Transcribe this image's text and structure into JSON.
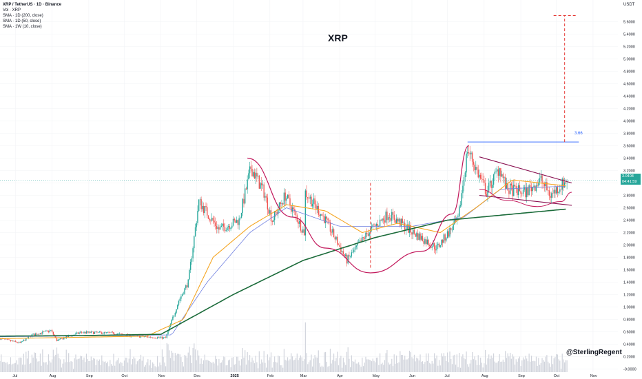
{
  "legend": {
    "symbol": "XRP / TetherUS · 1D · Binance",
    "vol": "Vol · XRP",
    "sma1": "SMA · 1D (200, close)",
    "sma2": "SMA · 1D (50, close)",
    "sma3": "SMA · 1W (10, close)"
  },
  "title": "XRP",
  "currency": "USDT",
  "watermark": "@SterlingRegent",
  "price_tag": {
    "price": "3.0408",
    "countdown": "04:41:59",
    "color": "#26a69a"
  },
  "target_label": "3.66",
  "colors": {
    "up": "#26a69a",
    "down": "#ef5350",
    "sma200": "#1b6b3a",
    "sma50": "#f5a623",
    "sma1w": "#6e7fe0",
    "annotation": "#c2185b",
    "dashed": "#e53935",
    "target_line": "#2962ff",
    "volume": "#d1d4dc"
  },
  "chart_data": {
    "type": "candlestick",
    "ylim": [
      -0.05,
      5.95
    ],
    "y_ticks": [
      "5.6000",
      "5.4000",
      "5.2000",
      "5.0000",
      "4.8000",
      "4.6000",
      "4.4000",
      "4.2000",
      "4.0000",
      "3.8000",
      "3.6000",
      "3.4000",
      "3.2000",
      "3.0000",
      "2.8000",
      "2.6000",
      "2.4000",
      "2.2000",
      "2.0000",
      "1.8000",
      "1.6000",
      "1.4000",
      "1.2000",
      "1.0000",
      "0.8000",
      "0.6000",
      "0.4000",
      "0.2000",
      "-0.0000"
    ],
    "x_ticks": [
      "Jul",
      "Aug",
      "Sep",
      "Oct",
      "Nov",
      "Dec",
      "2025",
      "Feb",
      "Mar",
      "Apr",
      "May",
      "Jun",
      "Jul",
      "Aug",
      "Sep",
      "Oct",
      "Nov"
    ],
    "x_range": [
      "2024-06-18",
      "2025-11-22"
    ],
    "current_price": 3.0408,
    "price_anchors": [
      [
        "2024-06-18",
        0.49
      ],
      [
        "2024-07-05",
        0.42
      ],
      [
        "2024-07-15",
        0.55
      ],
      [
        "2024-07-31",
        0.62
      ],
      [
        "2024-08-05",
        0.46
      ],
      [
        "2024-08-25",
        0.59
      ],
      [
        "2024-09-20",
        0.58
      ],
      [
        "2024-10-10",
        0.53
      ],
      [
        "2024-11-05",
        0.5
      ],
      [
        "2024-11-16",
        1.1
      ],
      [
        "2024-11-24",
        1.4
      ],
      [
        "2024-12-03",
        2.7
      ],
      [
        "2024-12-20",
        2.25
      ],
      [
        "2025-01-06",
        2.4
      ],
      [
        "2025-01-16",
        3.25
      ],
      [
        "2025-01-27",
        2.85
      ],
      [
        "2025-02-03",
        2.4
      ],
      [
        "2025-02-14",
        2.8
      ],
      [
        "2025-03-02",
        2.2
      ],
      [
        "2025-03-03",
        2.85
      ],
      [
        "2025-03-20",
        2.4
      ],
      [
        "2025-04-07",
        1.75
      ],
      [
        "2025-04-25",
        2.2
      ],
      [
        "2025-05-12",
        2.5
      ],
      [
        "2025-06-02",
        2.2
      ],
      [
        "2025-06-22",
        1.95
      ],
      [
        "2025-07-10",
        2.4
      ],
      [
        "2025-07-18",
        3.55
      ],
      [
        "2025-07-28",
        3.1
      ],
      [
        "2025-08-03",
        2.85
      ],
      [
        "2025-08-14",
        3.25
      ],
      [
        "2025-08-20",
        2.9
      ],
      [
        "2025-09-05",
        2.85
      ],
      [
        "2025-09-18",
        3.05
      ],
      [
        "2025-09-26",
        2.8
      ],
      [
        "2025-10-06",
        2.98
      ],
      [
        "2025-10-10",
        3.04
      ]
    ],
    "sma_200": [
      [
        "2024-06-18",
        0.53
      ],
      [
        "2024-09-01",
        0.54
      ],
      [
        "2024-11-01",
        0.56
      ],
      [
        "2025-01-01",
        1.2
      ],
      [
        "2025-03-01",
        1.75
      ],
      [
        "2025-05-01",
        2.12
      ],
      [
        "2025-07-01",
        2.4
      ],
      [
        "2025-08-15",
        2.48
      ],
      [
        "2025-10-10",
        2.58
      ]
    ],
    "sma_50": [
      [
        "2024-06-18",
        0.49
      ],
      [
        "2024-10-20",
        0.53
      ],
      [
        "2024-11-20",
        0.8
      ],
      [
        "2024-12-15",
        1.8
      ],
      [
        "2025-01-15",
        2.3
      ],
      [
        "2025-02-15",
        2.65
      ],
      [
        "2025-03-20",
        2.55
      ],
      [
        "2025-04-20",
        2.2
      ],
      [
        "2025-05-20",
        2.35
      ],
      [
        "2025-06-25",
        2.2
      ],
      [
        "2025-07-25",
        2.6
      ],
      [
        "2025-08-25",
        3.05
      ],
      [
        "2025-10-10",
        2.95
      ]
    ],
    "sma_1w": [
      [
        "2024-06-18",
        0.52
      ],
      [
        "2024-11-10",
        0.55
      ],
      [
        "2024-12-10",
        1.4
      ],
      [
        "2025-01-15",
        2.2
      ],
      [
        "2025-02-15",
        2.6
      ],
      [
        "2025-04-01",
        2.3
      ],
      [
        "2025-06-01",
        2.3
      ],
      [
        "2025-07-15",
        2.45
      ],
      [
        "2025-08-15",
        2.9
      ],
      [
        "2025-10-10",
        2.95
      ]
    ],
    "annotations": {
      "cup_points": [
        [
          "2025-01-13",
          3.4
        ],
        [
          "2025-02-20",
          2.45
        ],
        [
          "2025-03-20",
          1.95
        ],
        [
          "2025-04-27",
          1.55
        ],
        [
          "2025-06-10",
          1.9
        ],
        [
          "2025-07-05",
          2.5
        ],
        [
          "2025-07-19",
          3.6
        ]
      ],
      "pennant_upper": [
        [
          "2025-07-28",
          3.42
        ],
        [
          "2025-10-14",
          3.0
        ]
      ],
      "pennant_lower": [
        [
          "2025-07-28",
          2.8
        ],
        [
          "2025-10-14",
          2.64
        ]
      ],
      "inner_arc": [
        [
          "2025-07-28",
          2.9
        ],
        [
          "2025-08-20",
          2.72
        ],
        [
          "2025-09-15",
          2.62
        ],
        [
          "2025-10-05",
          2.7
        ],
        [
          "2025-10-14",
          2.85
        ]
      ],
      "target_level": 3.66,
      "target_line_x": [
        "2025-07-18",
        "2025-10-20"
      ],
      "measured_move": {
        "date": "2025-10-08",
        "from": 3.66,
        "to": 5.7
      },
      "cup_depth_marker": {
        "date": "2025-04-27",
        "from": 3.0,
        "to": 1.6
      }
    }
  }
}
